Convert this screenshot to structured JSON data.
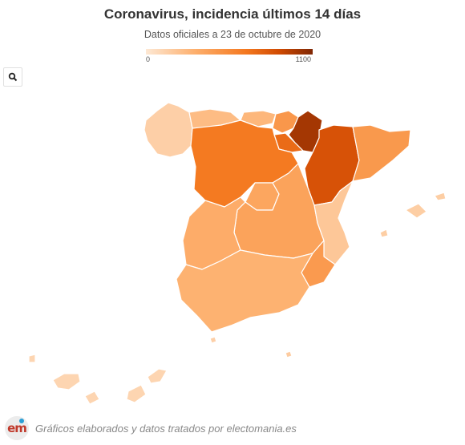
{
  "header": {
    "title": "Coronavirus, incidencia últimos 14 días",
    "subtitle": "Datos oficiales a 23 de octubre de 2020"
  },
  "legend": {
    "min_label": "0",
    "max_label": "1100",
    "min": 0,
    "max": 1100,
    "colors": [
      "#fde8d4",
      "#fdae6b",
      "#f4781f",
      "#d04a02",
      "#7f2704"
    ]
  },
  "controls": {
    "zoom_icon": "search-icon"
  },
  "regions": [
    {
      "name": "Galicia",
      "value": 140
    },
    {
      "name": "Asturias",
      "value": 250
    },
    {
      "name": "Cantabria",
      "value": 280
    },
    {
      "name": "País Vasco",
      "value": 470
    },
    {
      "name": "Navarra",
      "value": 1000
    },
    {
      "name": "La Rioja",
      "value": 720
    },
    {
      "name": "Aragón",
      "value": 840
    },
    {
      "name": "Cataluña",
      "value": 460
    },
    {
      "name": "Castilla y León",
      "value": 650
    },
    {
      "name": "Madrid",
      "value": 380
    },
    {
      "name": "Castilla-La Mancha",
      "value": 400
    },
    {
      "name": "Extremadura",
      "value": 340
    },
    {
      "name": "Comunidad Valenciana",
      "value": 190
    },
    {
      "name": "Murcia",
      "value": 450
    },
    {
      "name": "Andalucía",
      "value": 310
    },
    {
      "name": "Islas Baleares",
      "value": 150
    },
    {
      "name": "Canarias",
      "value": 110
    },
    {
      "name": "Ceuta",
      "value": 140
    },
    {
      "name": "Melilla",
      "value": 160
    }
  ],
  "footer": {
    "logo_text": "em",
    "credit": "Gráficos elaborados y datos tratados por electomania.es"
  }
}
